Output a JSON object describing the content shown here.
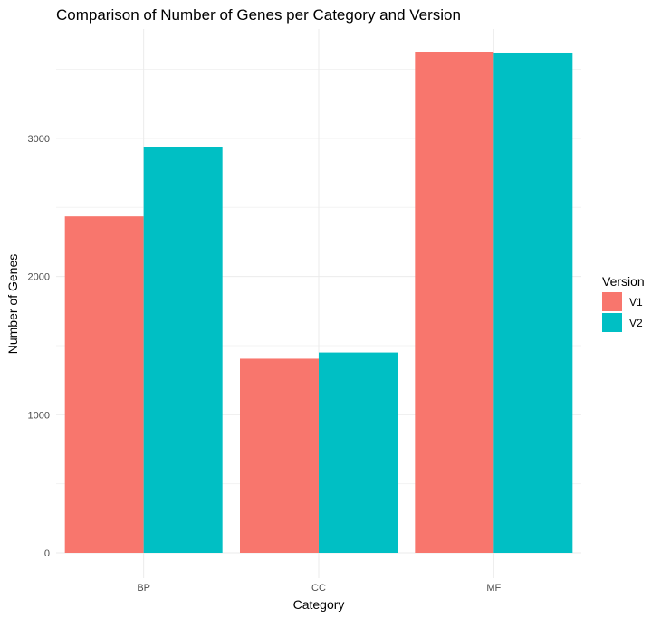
{
  "chart_data": {
    "type": "bar",
    "title": "Comparison of Number of Genes per Category and Version",
    "xlabel": "Category",
    "ylabel": "Number of Genes",
    "categories": [
      "BP",
      "CC",
      "MF"
    ],
    "series": [
      {
        "name": "V1",
        "color": "#F8766D",
        "values": [
          2435,
          1405,
          3625
        ]
      },
      {
        "name": "V2",
        "color": "#00BFC4",
        "values": [
          2935,
          1450,
          3615
        ]
      }
    ],
    "ylim": [
      0,
      3600
    ],
    "yticks": [
      0,
      1000,
      2000,
      3000
    ],
    "yticks_labels": [
      "0",
      "1000",
      "2000",
      "3000"
    ],
    "grid": true,
    "legend": {
      "title": "Version",
      "position": "right",
      "entries": [
        "V1",
        "V2"
      ]
    }
  }
}
